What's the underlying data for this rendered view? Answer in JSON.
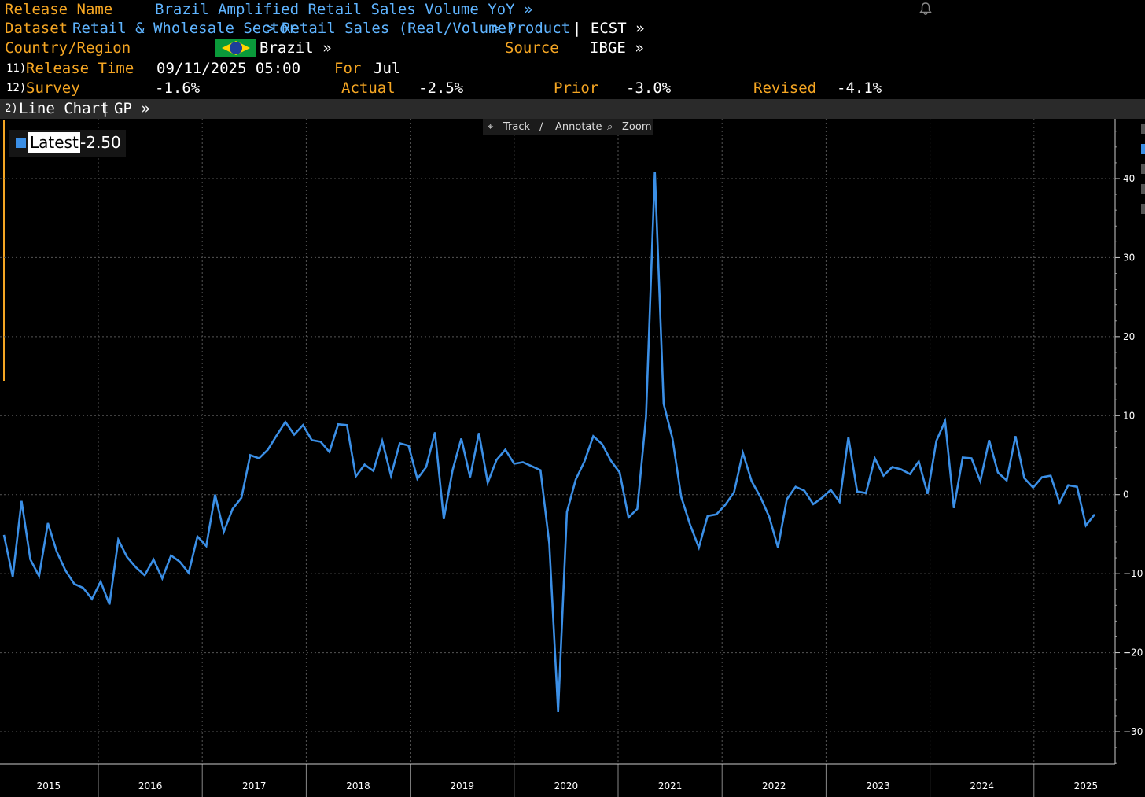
{
  "header": {
    "release_name_label": "Release Name",
    "release_name_value": "Brazil Amplified Retail Sales Volume YoY »",
    "dataset_label": "Dataset",
    "dataset_path_1": "Retail & Wholesale Sector",
    "dataset_path_2": "Retail Sales (Real/Volume)",
    "dataset_path_3": "Product",
    "dataset_sep": ">",
    "dataset_ticker": "| ECST »",
    "country_label": "Country/Region",
    "country_value": "Brazil »",
    "source_label": "Source",
    "source_value": "IBGE »",
    "release_time_num": "11)",
    "release_time_label": "Release Time",
    "release_time_value": "09/11/2025 05:00",
    "for_label": "For",
    "for_value": "Jul",
    "survey_num": "12)",
    "survey_label": "Survey",
    "survey_value": "-1.6%",
    "actual_label": "Actual",
    "actual_value": "-2.5%",
    "prior_label": "Prior",
    "prior_value": "-3.0%",
    "revised_label": "Revised",
    "revised_value": "-4.1%"
  },
  "chart_bar": {
    "num": "2)",
    "label": "Line Chart",
    "sep": "|",
    "gp": "GP »"
  },
  "toolbar": {
    "track": "Track",
    "annotate": "Annotate",
    "zoom": "Zoom"
  },
  "legend": {
    "label": "Latest",
    "value": "-2.50"
  },
  "colors": {
    "series": "#3b8fe6",
    "orange": "#f5a623",
    "link_blue": "#5fb4ff",
    "background": "#000000"
  },
  "chart_data": {
    "type": "line",
    "series": [
      {
        "name": "Latest",
        "values": [
          -5.1,
          -10.4,
          -0.8,
          -8.2,
          -10.3,
          -3.6,
          -7.2,
          -9.6,
          -11.3,
          -11.8,
          -13.2,
          -11.0,
          -13.9,
          -5.7,
          -7.9,
          -9.2,
          -10.2,
          -8.2,
          -10.6,
          -7.7,
          -8.5,
          -9.9,
          -5.3,
          -6.5,
          0.0,
          -4.7,
          -1.8,
          -0.4,
          5.0,
          4.6,
          5.7,
          7.5,
          9.2,
          7.6,
          8.8,
          6.9,
          6.7,
          5.4,
          8.9,
          8.8,
          2.3,
          3.8,
          3.0,
          6.8,
          2.4,
          6.5,
          6.2,
          2.0,
          3.5,
          7.9,
          -3.1,
          3.1,
          7.1,
          2.2,
          7.8,
          1.5,
          4.4,
          5.7,
          3.9,
          4.1,
          3.6,
          3.1,
          -6.2,
          -27.5,
          -2.2,
          1.9,
          4.2,
          7.4,
          6.4,
          4.3,
          2.8,
          -2.9,
          -1.8,
          9.9,
          40.9,
          11.5,
          7.1,
          -0.3,
          -3.8,
          -6.7,
          -2.7,
          -2.5,
          -1.3,
          0.3,
          5.3,
          1.7,
          -0.3,
          -2.8,
          -6.7,
          -0.6,
          1.0,
          0.5,
          -1.2,
          -0.4,
          0.6,
          -0.9,
          7.3,
          0.4,
          0.2,
          4.6,
          2.4,
          3.5,
          3.2,
          2.6,
          4.2,
          0.1,
          6.8,
          9.3,
          -1.7,
          4.7,
          4.6,
          1.7,
          6.9,
          2.8,
          1.8,
          7.4,
          2.1,
          0.9,
          2.2,
          2.4,
          -1.0,
          1.2,
          1.0,
          -3.9,
          -2.5
        ]
      }
    ],
    "x_labels": [
      "2015",
      "2016",
      "2017",
      "2018",
      "2019",
      "2020",
      "2021",
      "2022",
      "2023",
      "2024",
      "2025"
    ],
    "y_ticks": [
      40,
      30,
      20,
      10,
      0,
      -10,
      -20,
      -30
    ],
    "ylim": [
      -34,
      46
    ],
    "grid": true,
    "legend_position": "top-left"
  }
}
